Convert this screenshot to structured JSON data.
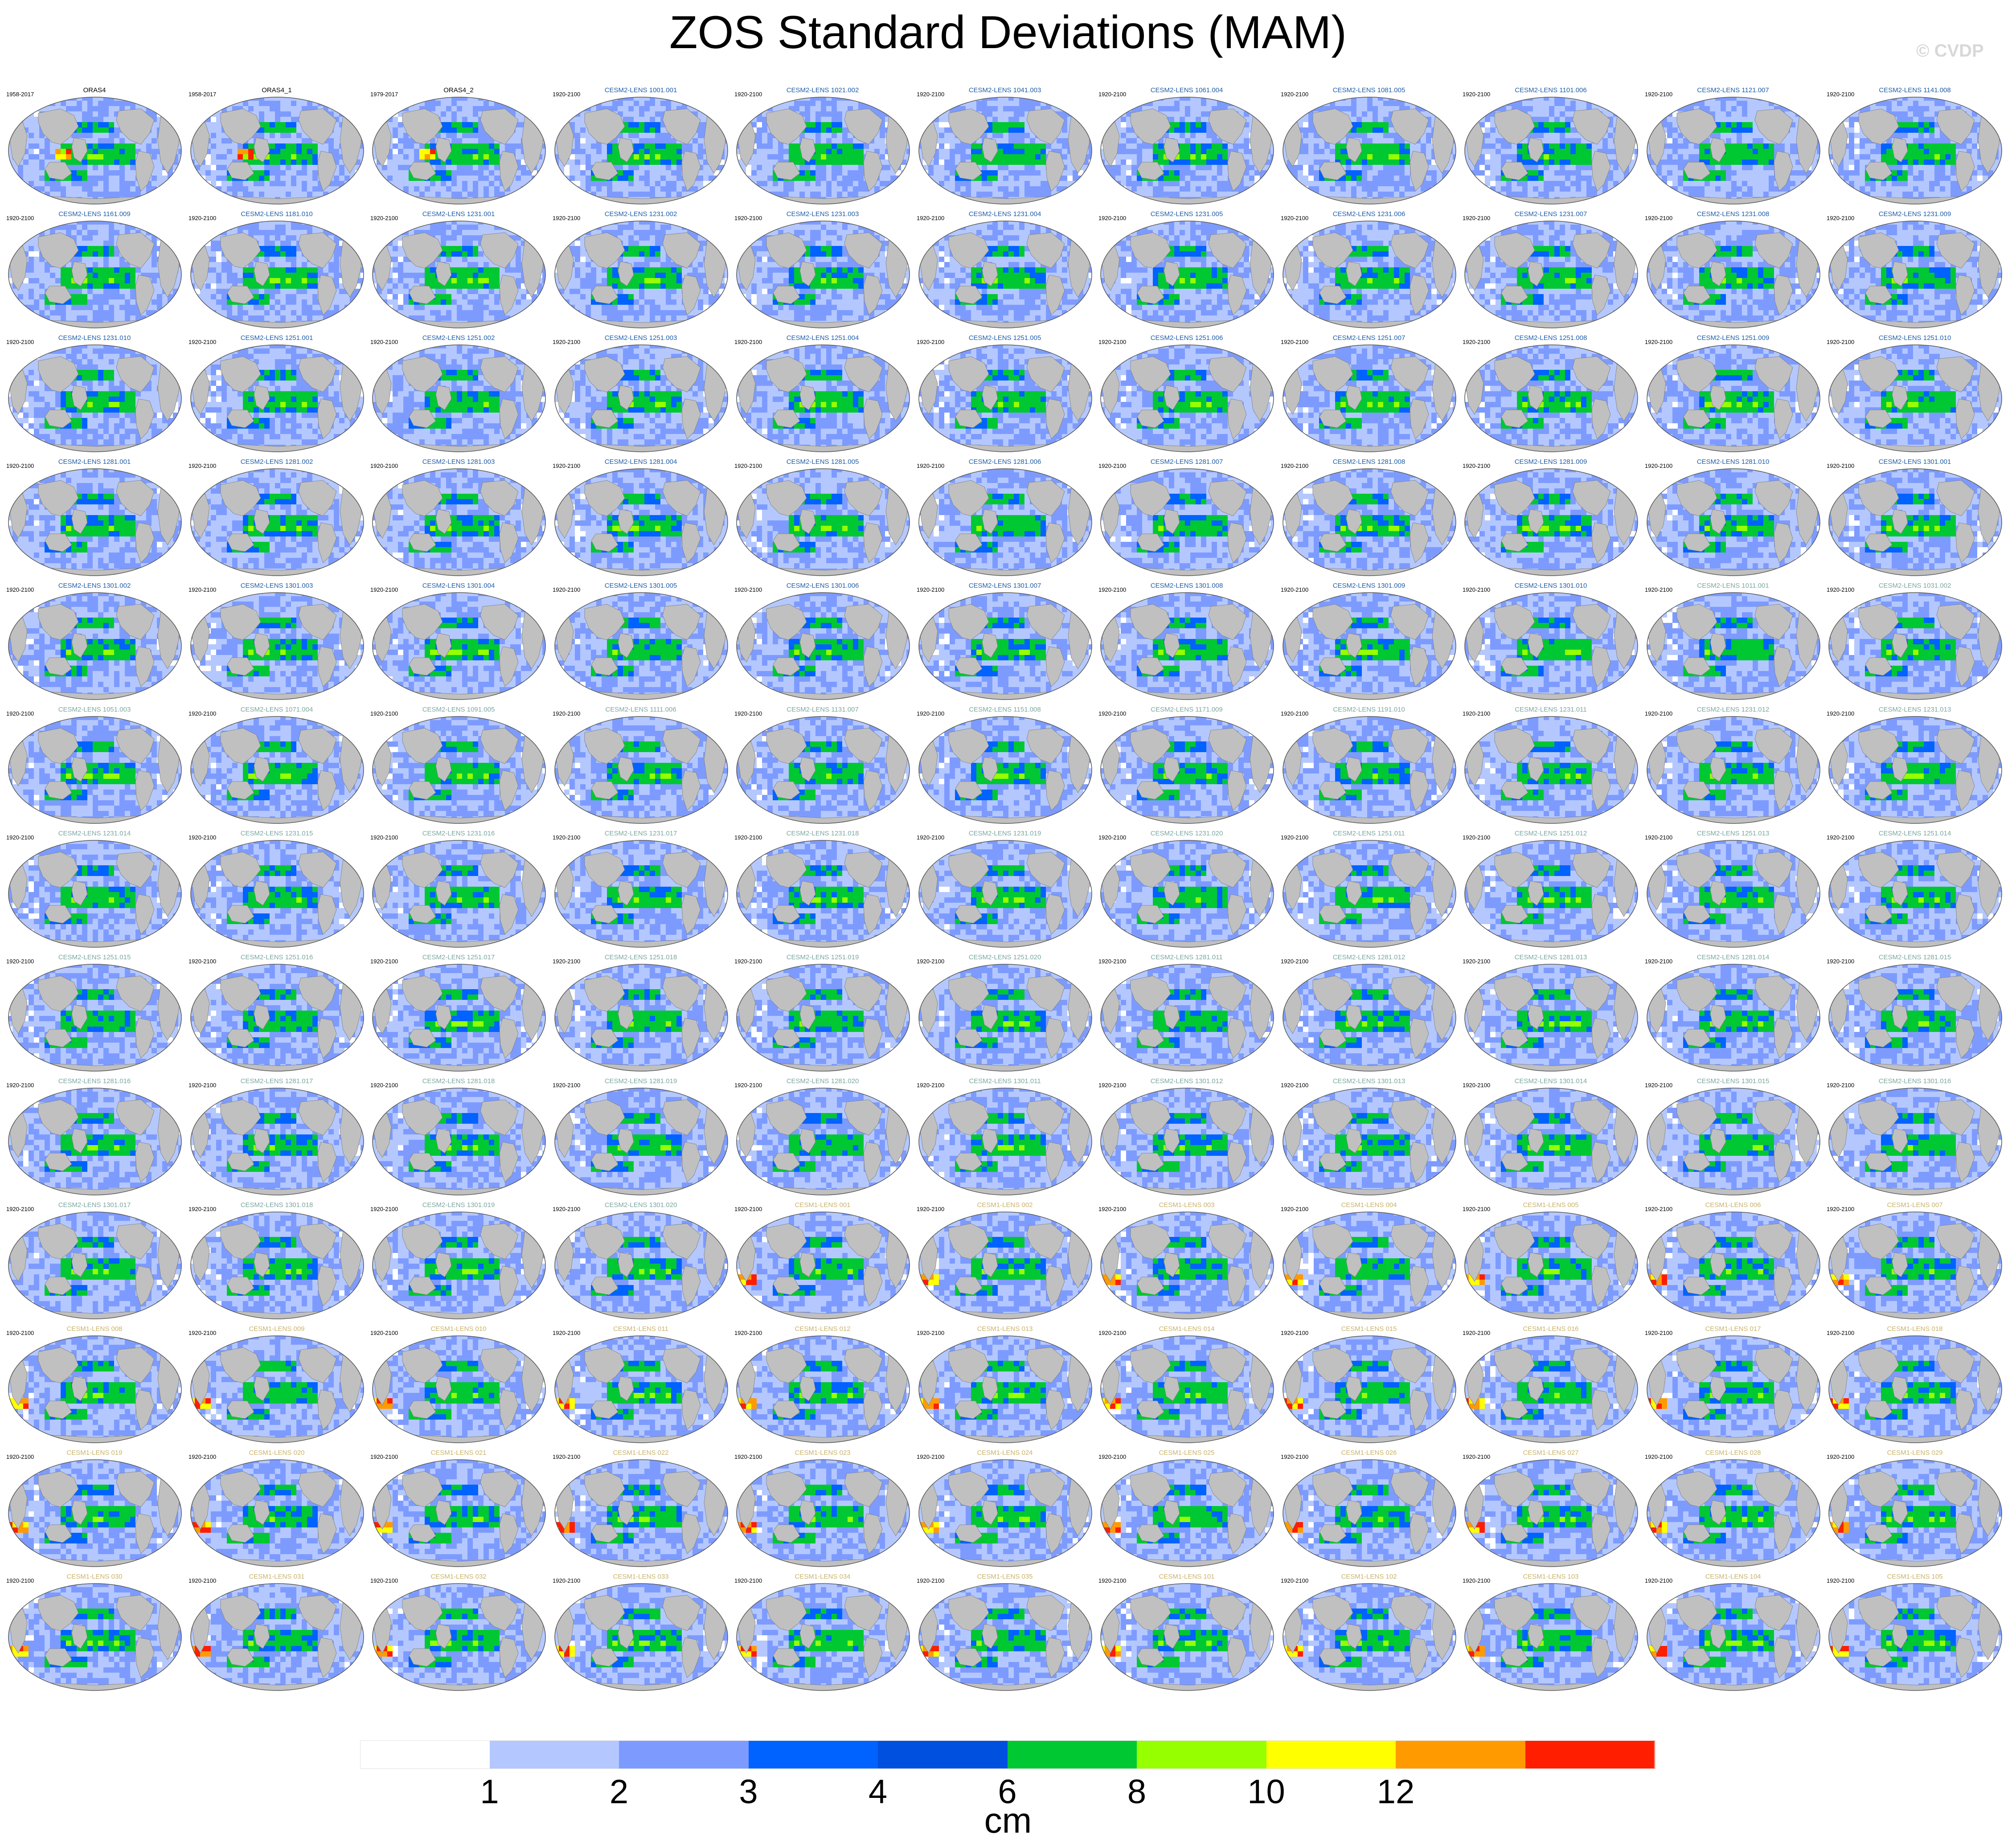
{
  "title": "ZOS Standard Deviations (MAM)",
  "watermark": "© CVDP",
  "colors": {
    "land": "#c0c0c0",
    "levels": [
      "#ffffff",
      "#b4c8ff",
      "#7d9bff",
      "#0062ff",
      "#0050e0",
      "#00c832",
      "#96ff00",
      "#ffff00",
      "#ff9b00",
      "#ff1e00"
    ],
    "title_obs": "#000000",
    "title_cesm2_first": "#1f5ea8",
    "title_cesm2_second": "#7ba7a0",
    "title_cesm1": "#c9b36a"
  },
  "colorbar": {
    "tick_labels": [
      "1",
      "2",
      "3",
      "4",
      "6",
      "8",
      "10",
      "12"
    ],
    "units": "cm",
    "segment_colors": [
      "#ffffff",
      "#b4c8ff",
      "#7d9bff",
      "#0062ff",
      "#0050e0",
      "#00c832",
      "#96ff00",
      "#ffff00",
      "#ff9b00",
      "#ff1e00"
    ]
  },
  "panels": [
    {
      "title": "ORAS4",
      "period": "1958-2017",
      "group": "obs"
    },
    {
      "title": "ORAS4_1",
      "period": "1958-2017",
      "group": "obs"
    },
    {
      "title": "ORAS4_2",
      "period": "1979-2017",
      "group": "obs"
    },
    {
      "title": "CESM2-LENS 1001.001",
      "period": "1920-2100",
      "group": "cesm2a"
    },
    {
      "title": "CESM2-LENS 1021.002",
      "period": "1920-2100",
      "group": "cesm2a"
    },
    {
      "title": "CESM2-LENS 1041.003",
      "period": "1920-2100",
      "group": "cesm2a"
    },
    {
      "title": "CESM2-LENS 1061.004",
      "period": "1920-2100",
      "group": "cesm2a"
    },
    {
      "title": "CESM2-LENS 1081.005",
      "period": "1920-2100",
      "group": "cesm2a"
    },
    {
      "title": "CESM2-LENS 1101.006",
      "period": "1920-2100",
      "group": "cesm2a"
    },
    {
      "title": "CESM2-LENS 1121.007",
      "period": "1920-2100",
      "group": "cesm2a"
    },
    {
      "title": "CESM2-LENS 1141.008",
      "period": "1920-2100",
      "group": "cesm2a"
    },
    {
      "title": "CESM2-LENS 1161.009",
      "period": "1920-2100",
      "group": "cesm2a"
    },
    {
      "title": "CESM2-LENS 1181.010",
      "period": "1920-2100",
      "group": "cesm2a"
    },
    {
      "title": "CESM2-LENS 1231.001",
      "period": "1920-2100",
      "group": "cesm2a"
    },
    {
      "title": "CESM2-LENS 1231.002",
      "period": "1920-2100",
      "group": "cesm2a"
    },
    {
      "title": "CESM2-LENS 1231.003",
      "period": "1920-2100",
      "group": "cesm2a"
    },
    {
      "title": "CESM2-LENS 1231.004",
      "period": "1920-2100",
      "group": "cesm2a"
    },
    {
      "title": "CESM2-LENS 1231.005",
      "period": "1920-2100",
      "group": "cesm2a"
    },
    {
      "title": "CESM2-LENS 1231.006",
      "period": "1920-2100",
      "group": "cesm2a"
    },
    {
      "title": "CESM2-LENS 1231.007",
      "period": "1920-2100",
      "group": "cesm2a"
    },
    {
      "title": "CESM2-LENS 1231.008",
      "period": "1920-2100",
      "group": "cesm2a"
    },
    {
      "title": "CESM2-LENS 1231.009",
      "period": "1920-2100",
      "group": "cesm2a"
    },
    {
      "title": "CESM2-LENS 1231.010",
      "period": "1920-2100",
      "group": "cesm2a"
    },
    {
      "title": "CESM2-LENS 1251.001",
      "period": "1920-2100",
      "group": "cesm2a"
    },
    {
      "title": "CESM2-LENS 1251.002",
      "period": "1920-2100",
      "group": "cesm2a"
    },
    {
      "title": "CESM2-LENS 1251.003",
      "period": "1920-2100",
      "group": "cesm2a"
    },
    {
      "title": "CESM2-LENS 1251.004",
      "period": "1920-2100",
      "group": "cesm2a"
    },
    {
      "title": "CESM2-LENS 1251.005",
      "period": "1920-2100",
      "group": "cesm2a"
    },
    {
      "title": "CESM2-LENS 1251.006",
      "period": "1920-2100",
      "group": "cesm2a"
    },
    {
      "title": "CESM2-LENS 1251.007",
      "period": "1920-2100",
      "group": "cesm2a"
    },
    {
      "title": "CESM2-LENS 1251.008",
      "period": "1920-2100",
      "group": "cesm2a"
    },
    {
      "title": "CESM2-LENS 1251.009",
      "period": "1920-2100",
      "group": "cesm2a"
    },
    {
      "title": "CESM2-LENS 1251.010",
      "period": "1920-2100",
      "group": "cesm2a"
    },
    {
      "title": "CESM2-LENS 1281.001",
      "period": "1920-2100",
      "group": "cesm2a"
    },
    {
      "title": "CESM2-LENS 1281.002",
      "period": "1920-2100",
      "group": "cesm2a"
    },
    {
      "title": "CESM2-LENS 1281.003",
      "period": "1920-2100",
      "group": "cesm2a"
    },
    {
      "title": "CESM2-LENS 1281.004",
      "period": "1920-2100",
      "group": "cesm2a"
    },
    {
      "title": "CESM2-LENS 1281.005",
      "period": "1920-2100",
      "group": "cesm2a"
    },
    {
      "title": "CESM2-LENS 1281.006",
      "period": "1920-2100",
      "group": "cesm2a"
    },
    {
      "title": "CESM2-LENS 1281.007",
      "period": "1920-2100",
      "group": "cesm2a"
    },
    {
      "title": "CESM2-LENS 1281.008",
      "period": "1920-2100",
      "group": "cesm2a"
    },
    {
      "title": "CESM2-LENS 1281.009",
      "period": "1920-2100",
      "group": "cesm2a"
    },
    {
      "title": "CESM2-LENS 1281.010",
      "period": "1920-2100",
      "group": "cesm2a"
    },
    {
      "title": "CESM2-LENS 1301.001",
      "period": "1920-2100",
      "group": "cesm2a"
    },
    {
      "title": "CESM2-LENS 1301.002",
      "period": "1920-2100",
      "group": "cesm2a"
    },
    {
      "title": "CESM2-LENS 1301.003",
      "period": "1920-2100",
      "group": "cesm2a"
    },
    {
      "title": "CESM2-LENS 1301.004",
      "period": "1920-2100",
      "group": "cesm2a"
    },
    {
      "title": "CESM2-LENS 1301.005",
      "period": "1920-2100",
      "group": "cesm2a"
    },
    {
      "title": "CESM2-LENS 1301.006",
      "period": "1920-2100",
      "group": "cesm2a"
    },
    {
      "title": "CESM2-LENS 1301.007",
      "period": "1920-2100",
      "group": "cesm2a"
    },
    {
      "title": "CESM2-LENS 1301.008",
      "period": "1920-2100",
      "group": "cesm2a"
    },
    {
      "title": "CESM2-LENS 1301.009",
      "period": "1920-2100",
      "group": "cesm2a"
    },
    {
      "title": "CESM2-LENS 1301.010",
      "period": "1920-2100",
      "group": "cesm2a"
    },
    {
      "title": "CESM2-LENS 1011.001",
      "period": "1920-2100",
      "group": "cesm2b"
    },
    {
      "title": "CESM2-LENS 1031.002",
      "period": "1920-2100",
      "group": "cesm2b"
    },
    {
      "title": "CESM2-LENS 1051.003",
      "period": "1920-2100",
      "group": "cesm2b"
    },
    {
      "title": "CESM2-LENS 1071.004",
      "period": "1920-2100",
      "group": "cesm2b"
    },
    {
      "title": "CESM2-LENS 1091.005",
      "period": "1920-2100",
      "group": "cesm2b"
    },
    {
      "title": "CESM2-LENS 1111.006",
      "period": "1920-2100",
      "group": "cesm2b"
    },
    {
      "title": "CESM2-LENS 1131.007",
      "period": "1920-2100",
      "group": "cesm2b"
    },
    {
      "title": "CESM2-LENS 1151.008",
      "period": "1920-2100",
      "group": "cesm2b"
    },
    {
      "title": "CESM2-LENS 1171.009",
      "period": "1920-2100",
      "group": "cesm2b"
    },
    {
      "title": "CESM2-LENS 1191.010",
      "period": "1920-2100",
      "group": "cesm2b"
    },
    {
      "title": "CESM2-LENS 1231.011",
      "period": "1920-2100",
      "group": "cesm2b"
    },
    {
      "title": "CESM2-LENS 1231.012",
      "period": "1920-2100",
      "group": "cesm2b"
    },
    {
      "title": "CESM2-LENS 1231.013",
      "period": "1920-2100",
      "group": "cesm2b"
    },
    {
      "title": "CESM2-LENS 1231.014",
      "period": "1920-2100",
      "group": "cesm2b"
    },
    {
      "title": "CESM2-LENS 1231.015",
      "period": "1920-2100",
      "group": "cesm2b"
    },
    {
      "title": "CESM2-LENS 1231.016",
      "period": "1920-2100",
      "group": "cesm2b"
    },
    {
      "title": "CESM2-LENS 1231.017",
      "period": "1920-2100",
      "group": "cesm2b"
    },
    {
      "title": "CESM2-LENS 1231.018",
      "period": "1920-2100",
      "group": "cesm2b"
    },
    {
      "title": "CESM2-LENS 1231.019",
      "period": "1920-2100",
      "group": "cesm2b"
    },
    {
      "title": "CESM2-LENS 1231.020",
      "period": "1920-2100",
      "group": "cesm2b"
    },
    {
      "title": "CESM2-LENS 1251.011",
      "period": "1920-2100",
      "group": "cesm2b"
    },
    {
      "title": "CESM2-LENS 1251.012",
      "period": "1920-2100",
      "group": "cesm2b"
    },
    {
      "title": "CESM2-LENS 1251.013",
      "period": "1920-2100",
      "group": "cesm2b"
    },
    {
      "title": "CESM2-LENS 1251.014",
      "period": "1920-2100",
      "group": "cesm2b"
    },
    {
      "title": "CESM2-LENS 1251.015",
      "period": "1920-2100",
      "group": "cesm2b"
    },
    {
      "title": "CESM2-LENS 1251.016",
      "period": "1920-2100",
      "group": "cesm2b"
    },
    {
      "title": "CESM2-LENS 1251.017",
      "period": "1920-2100",
      "group": "cesm2b"
    },
    {
      "title": "CESM2-LENS 1251.018",
      "period": "1920-2100",
      "group": "cesm2b"
    },
    {
      "title": "CESM2-LENS 1251.019",
      "period": "1920-2100",
      "group": "cesm2b"
    },
    {
      "title": "CESM2-LENS 1251.020",
      "period": "1920-2100",
      "group": "cesm2b"
    },
    {
      "title": "CESM2-LENS 1281.011",
      "period": "1920-2100",
      "group": "cesm2b"
    },
    {
      "title": "CESM2-LENS 1281.012",
      "period": "1920-2100",
      "group": "cesm2b"
    },
    {
      "title": "CESM2-LENS 1281.013",
      "period": "1920-2100",
      "group": "cesm2b"
    },
    {
      "title": "CESM2-LENS 1281.014",
      "period": "1920-2100",
      "group": "cesm2b"
    },
    {
      "title": "CESM2-LENS 1281.015",
      "period": "1920-2100",
      "group": "cesm2b"
    },
    {
      "title": "CESM2-LENS 1281.016",
      "period": "1920-2100",
      "group": "cesm2b"
    },
    {
      "title": "CESM2-LENS 1281.017",
      "period": "1920-2100",
      "group": "cesm2b"
    },
    {
      "title": "CESM2-LENS 1281.018",
      "period": "1920-2100",
      "group": "cesm2b"
    },
    {
      "title": "CESM2-LENS 1281.019",
      "period": "1920-2100",
      "group": "cesm2b"
    },
    {
      "title": "CESM2-LENS 1281.020",
      "period": "1920-2100",
      "group": "cesm2b"
    },
    {
      "title": "CESM2-LENS 1301.011",
      "period": "1920-2100",
      "group": "cesm2b"
    },
    {
      "title": "CESM2-LENS 1301.012",
      "period": "1920-2100",
      "group": "cesm2b"
    },
    {
      "title": "CESM2-LENS 1301.013",
      "period": "1920-2100",
      "group": "cesm2b"
    },
    {
      "title": "CESM2-LENS 1301.014",
      "period": "1920-2100",
      "group": "cesm2b"
    },
    {
      "title": "CESM2-LENS 1301.015",
      "period": "1920-2100",
      "group": "cesm2b"
    },
    {
      "title": "CESM2-LENS 1301.016",
      "period": "1920-2100",
      "group": "cesm2b"
    },
    {
      "title": "CESM2-LENS 1301.017",
      "period": "1920-2100",
      "group": "cesm2b"
    },
    {
      "title": "CESM2-LENS 1301.018",
      "period": "1920-2100",
      "group": "cesm2b"
    },
    {
      "title": "CESM2-LENS 1301.019",
      "period": "1920-2100",
      "group": "cesm2b"
    },
    {
      "title": "CESM2-LENS 1301.020",
      "period": "1920-2100",
      "group": "cesm2b"
    },
    {
      "title": "CESM1-LENS 001",
      "period": "1920-2100",
      "group": "cesm1"
    },
    {
      "title": "CESM1-LENS 002",
      "period": "1920-2100",
      "group": "cesm1"
    },
    {
      "title": "CESM1-LENS 003",
      "period": "1920-2100",
      "group": "cesm1"
    },
    {
      "title": "CESM1-LENS 004",
      "period": "1920-2100",
      "group": "cesm1"
    },
    {
      "title": "CESM1-LENS 005",
      "period": "1920-2100",
      "group": "cesm1"
    },
    {
      "title": "CESM1-LENS 006",
      "period": "1920-2100",
      "group": "cesm1"
    },
    {
      "title": "CESM1-LENS 007",
      "period": "1920-2100",
      "group": "cesm1"
    },
    {
      "title": "CESM1-LENS 008",
      "period": "1920-2100",
      "group": "cesm1"
    },
    {
      "title": "CESM1-LENS 009",
      "period": "1920-2100",
      "group": "cesm1"
    },
    {
      "title": "CESM1-LENS 010",
      "period": "1920-2100",
      "group": "cesm1"
    },
    {
      "title": "CESM1-LENS 011",
      "period": "1920-2100",
      "group": "cesm1"
    },
    {
      "title": "CESM1-LENS 012",
      "period": "1920-2100",
      "group": "cesm1"
    },
    {
      "title": "CESM1-LENS 013",
      "period": "1920-2100",
      "group": "cesm1"
    },
    {
      "title": "CESM1-LENS 014",
      "period": "1920-2100",
      "group": "cesm1"
    },
    {
      "title": "CESM1-LENS 015",
      "period": "1920-2100",
      "group": "cesm1"
    },
    {
      "title": "CESM1-LENS 016",
      "period": "1920-2100",
      "group": "cesm1"
    },
    {
      "title": "CESM1-LENS 017",
      "period": "1920-2100",
      "group": "cesm1"
    },
    {
      "title": "CESM1-LENS 018",
      "period": "1920-2100",
      "group": "cesm1"
    },
    {
      "title": "CESM1-LENS 019",
      "period": "1920-2100",
      "group": "cesm1"
    },
    {
      "title": "CESM1-LENS 020",
      "period": "1920-2100",
      "group": "cesm1"
    },
    {
      "title": "CESM1-LENS 021",
      "period": "1920-2100",
      "group": "cesm1"
    },
    {
      "title": "CESM1-LENS 022",
      "period": "1920-2100",
      "group": "cesm1"
    },
    {
      "title": "CESM1-LENS 023",
      "period": "1920-2100",
      "group": "cesm1"
    },
    {
      "title": "CESM1-LENS 024",
      "period": "1920-2100",
      "group": "cesm1"
    },
    {
      "title": "CESM1-LENS 025",
      "period": "1920-2100",
      "group": "cesm1"
    },
    {
      "title": "CESM1-LENS 026",
      "period": "1920-2100",
      "group": "cesm1"
    },
    {
      "title": "CESM1-LENS 027",
      "period": "1920-2100",
      "group": "cesm1"
    },
    {
      "title": "CESM1-LENS 028",
      "period": "1920-2100",
      "group": "cesm1"
    },
    {
      "title": "CESM1-LENS 029",
      "period": "1920-2100",
      "group": "cesm1"
    },
    {
      "title": "CESM1-LENS 030",
      "period": "1920-2100",
      "group": "cesm1"
    },
    {
      "title": "CESM1-LENS 031",
      "period": "1920-2100",
      "group": "cesm1"
    },
    {
      "title": "CESM1-LENS 032",
      "period": "1920-2100",
      "group": "cesm1"
    },
    {
      "title": "CESM1-LENS 033",
      "period": "1920-2100",
      "group": "cesm1"
    },
    {
      "title": "CESM1-LENS 034",
      "period": "1920-2100",
      "group": "cesm1"
    },
    {
      "title": "CESM1-LENS 035",
      "period": "1920-2100",
      "group": "cesm1"
    },
    {
      "title": "CESM1-LENS 101",
      "period": "1920-2100",
      "group": "cesm1"
    },
    {
      "title": "CESM1-LENS 102",
      "period": "1920-2100",
      "group": "cesm1"
    },
    {
      "title": "CESM1-LENS 103",
      "period": "1920-2100",
      "group": "cesm1"
    },
    {
      "title": "CESM1-LENS 104",
      "period": "1920-2100",
      "group": "cesm1"
    },
    {
      "title": "CESM1-LENS 105",
      "period": "1920-2100",
      "group": "cesm1"
    }
  ]
}
